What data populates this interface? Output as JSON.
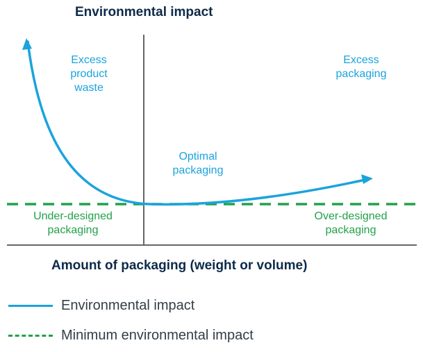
{
  "diagram": {
    "y_axis_title": "Environmental impact",
    "x_axis_title": "Amount of packaging (weight or volume)",
    "regions": {
      "excess_product_waste": "Excess\nproduct\nwaste",
      "excess_packaging": "Excess\npackaging",
      "optimal_packaging": "Optimal\npackaging",
      "under_designed": "Under-designed\npackaging",
      "over_designed": "Over-designed\npackaging"
    },
    "colors": {
      "curve": "#1ba3dc",
      "minimum_line": "#22a14a",
      "axes": "#666666",
      "title": "#0d2a4a"
    }
  },
  "legend": [
    {
      "label": "Environmental impact",
      "style": "solid",
      "color": "#1ba3dc"
    },
    {
      "label": "Minimum environmental impact",
      "style": "dashed",
      "color": "#22a14a"
    }
  ]
}
